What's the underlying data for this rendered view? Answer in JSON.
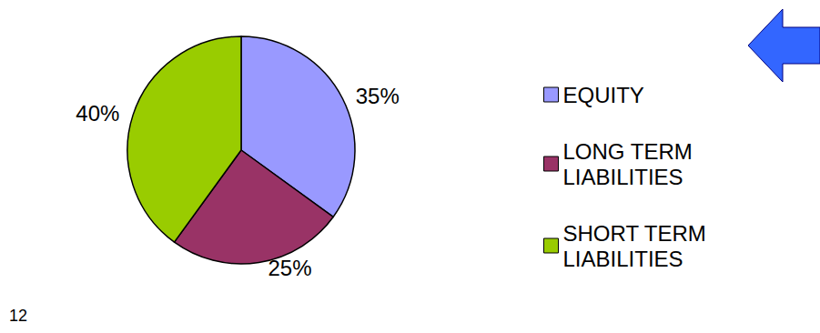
{
  "chart_data": {
    "type": "pie",
    "categories": [
      "EQUITY",
      "LONG TERM LIABILITIES",
      "SHORT TERM LIABILITIES"
    ],
    "values": [
      35,
      25,
      40
    ],
    "value_labels": [
      "35%",
      "25%",
      "40%"
    ],
    "colors": [
      "#9999ff",
      "#993366",
      "#99cc00"
    ],
    "data_labels": true,
    "legend": "right",
    "annotations": [
      "12"
    ]
  }
}
